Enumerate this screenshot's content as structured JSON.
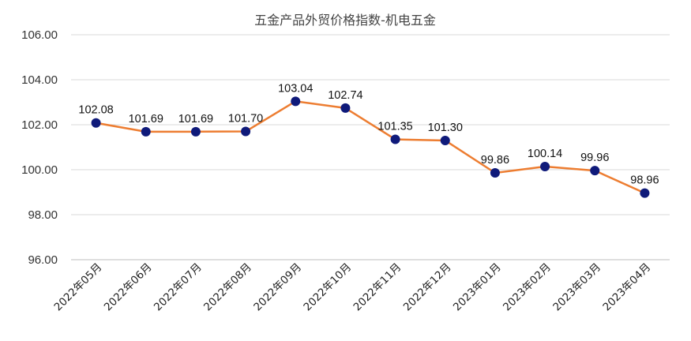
{
  "chart_data": {
    "type": "line",
    "title": "五金产品外贸价格指数-机电五金",
    "xlabel": "",
    "ylabel": "",
    "ylim": [
      96,
      106
    ],
    "y_ticks": [
      "96.00",
      "98.00",
      "100.00",
      "102.00",
      "104.00",
      "106.00"
    ],
    "grid": true,
    "legend": "none",
    "categories": [
      "2022年05月",
      "2022年06月",
      "2022年07月",
      "2022年08月",
      "2022年09月",
      "2022年10月",
      "2022年11月",
      "2022年12月",
      "2023年01月",
      "2023年02月",
      "2023年03月",
      "2023年04月"
    ],
    "series": [
      {
        "values": [
          102.08,
          101.69,
          101.69,
          101.7,
          103.04,
          102.74,
          101.35,
          101.3,
          99.86,
          100.14,
          99.96,
          98.96
        ],
        "labels": [
          "102.08",
          "101.69",
          "101.69",
          "101.70",
          "103.04",
          "102.74",
          "101.35",
          "101.30",
          "99.86",
          "100.14",
          "99.96",
          "98.96"
        ]
      }
    ],
    "colors": {
      "line": "#ED7D31",
      "marker": "#0F1A7A",
      "grid": "#D9D9D9",
      "axis": "#BFBFBF"
    }
  }
}
